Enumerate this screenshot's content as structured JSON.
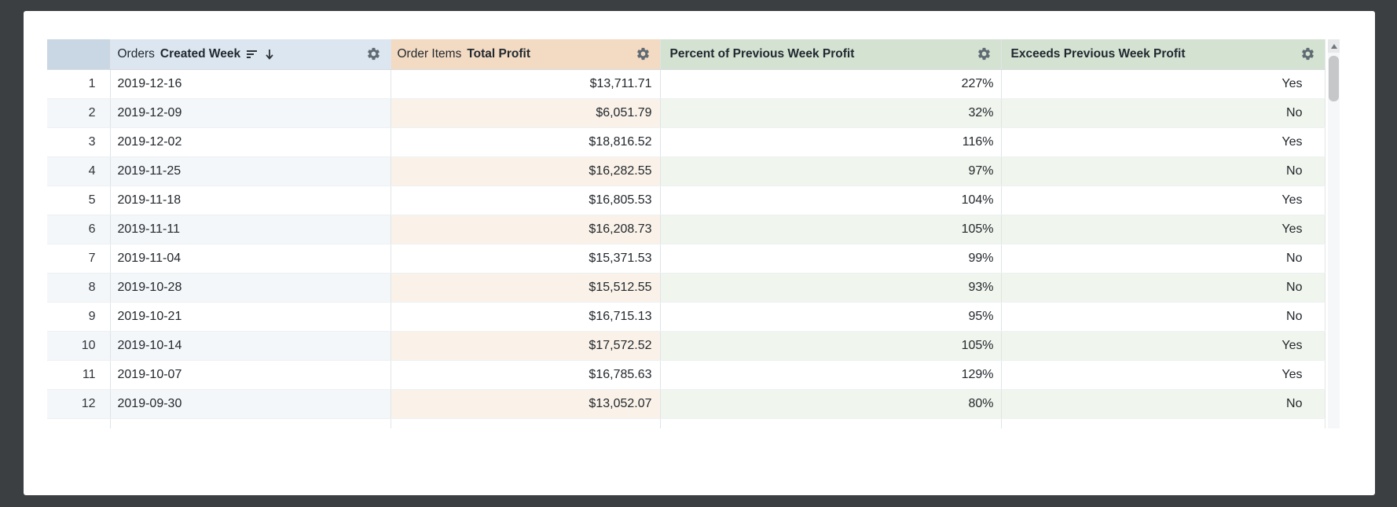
{
  "app": {
    "background_color": "#3b3f42",
    "card_color": "#ffffff"
  },
  "icons": {
    "gear-icon": "settings gear",
    "sort-lines-icon": "descending horizontal bars",
    "sort-desc-arrow-icon": "↓",
    "scroll-up-icon": "▲"
  },
  "table": {
    "row_number_header_bg": "#c9d7e4",
    "columns": [
      {
        "id": "created_week",
        "view_label": "Orders",
        "field_label": "Created Week",
        "sort": "desc",
        "header_bg": "#dce6f0",
        "stripe_bg": "#f4f7fa",
        "align": "left"
      },
      {
        "id": "total_profit",
        "view_label": "Order Items",
        "field_label": "Total Profit",
        "sort": "",
        "header_bg": "#f3dac2",
        "stripe_bg": "#faf2e9",
        "align": "right"
      },
      {
        "id": "percent_of_previous_week_profit",
        "view_label": "",
        "field_label": "Percent of Previous Week Profit",
        "sort": "",
        "header_bg": "#d4e2d2",
        "stripe_bg": "#f0f5ee",
        "align": "right"
      },
      {
        "id": "exceeds_previous_week_profit",
        "view_label": "",
        "field_label": "Exceeds Previous Week Profit",
        "sort": "",
        "header_bg": "#d4e2d2",
        "stripe_bg": "#f0f5ee",
        "align": "right"
      }
    ],
    "rows": [
      [
        "1",
        "2019-12-16",
        "$13,711.71",
        "227%",
        "Yes"
      ],
      [
        "2",
        "2019-12-09",
        "$6,051.79",
        "32%",
        "No"
      ],
      [
        "3",
        "2019-12-02",
        "$18,816.52",
        "116%",
        "Yes"
      ],
      [
        "4",
        "2019-11-25",
        "$16,282.55",
        "97%",
        "No"
      ],
      [
        "5",
        "2019-11-18",
        "$16,805.53",
        "104%",
        "Yes"
      ],
      [
        "6",
        "2019-11-11",
        "$16,208.73",
        "105%",
        "Yes"
      ],
      [
        "7",
        "2019-11-04",
        "$15,371.53",
        "99%",
        "No"
      ],
      [
        "8",
        "2019-10-28",
        "$15,512.55",
        "93%",
        "No"
      ],
      [
        "9",
        "2019-10-21",
        "$16,715.13",
        "95%",
        "No"
      ],
      [
        "10",
        "2019-10-14",
        "$17,572.52",
        "105%",
        "Yes"
      ],
      [
        "11",
        "2019-10-07",
        "$16,785.63",
        "129%",
        "Yes"
      ],
      [
        "12",
        "2019-09-30",
        "$13,052.07",
        "80%",
        "No"
      ]
    ]
  }
}
